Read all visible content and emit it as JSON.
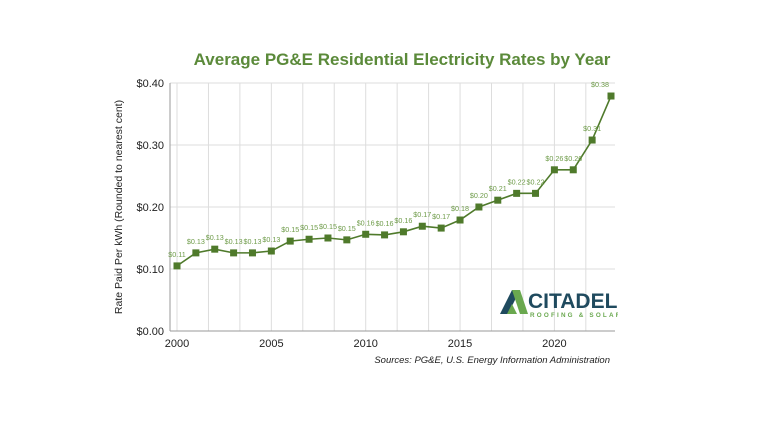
{
  "chart_data": {
    "type": "line",
    "title": "Average PG&E Residential Electricity Rates by Year",
    "ylabel": "Rate Paid Per kWh (Rounded to nearest cent)",
    "xlabel": "",
    "x": [
      2000,
      2001,
      2002,
      2003,
      2004,
      2005,
      2006,
      2007,
      2008,
      2009,
      2010,
      2011,
      2012,
      2013,
      2014,
      2015,
      2016,
      2017,
      2018,
      2019,
      2020,
      2021,
      2022,
      2023
    ],
    "values": [
      0.105,
      0.126,
      0.132,
      0.126,
      0.126,
      0.129,
      0.145,
      0.148,
      0.15,
      0.147,
      0.156,
      0.155,
      0.16,
      0.169,
      0.166,
      0.179,
      0.2,
      0.211,
      0.222,
      0.222,
      0.26,
      0.26,
      0.308,
      0.379
    ],
    "data_labels": [
      "$0.11",
      "$0.13",
      "$0.13",
      "$0.13",
      "$0.13",
      "$0.13",
      "$0.15",
      "$0.15",
      "$0.15",
      "$0.15",
      "$0.16",
      "$0.16",
      "$0.16",
      "$0.17",
      "$0.17",
      "$0.18",
      "$0.20",
      "$0.21",
      "$0.22",
      "$0.22",
      "$0.26",
      "$0.26",
      "$0.31",
      "$0.38"
    ],
    "xlim": [
      2000,
      2023
    ],
    "ylim": [
      0,
      0.4
    ],
    "x_ticks": [
      "2000",
      "2005",
      "2010",
      "2015",
      "2020"
    ],
    "y_ticks": [
      "$0.00",
      "$0.10",
      "$0.20",
      "$0.30",
      "$0.40"
    ],
    "grid": true,
    "marker": "square",
    "colors": {
      "line": "#4f7a2b",
      "label": "#6f9c4a",
      "title": "#5b8a3a",
      "grid": "#dddddd"
    }
  },
  "source": "Sources: PG&E, U.S. Energy Information Administration",
  "logo": {
    "name": "CITADEL",
    "tagline": "ROOFING & SOLAR",
    "colors": {
      "navy": "#1f4a5e",
      "green": "#6aa84f"
    }
  }
}
